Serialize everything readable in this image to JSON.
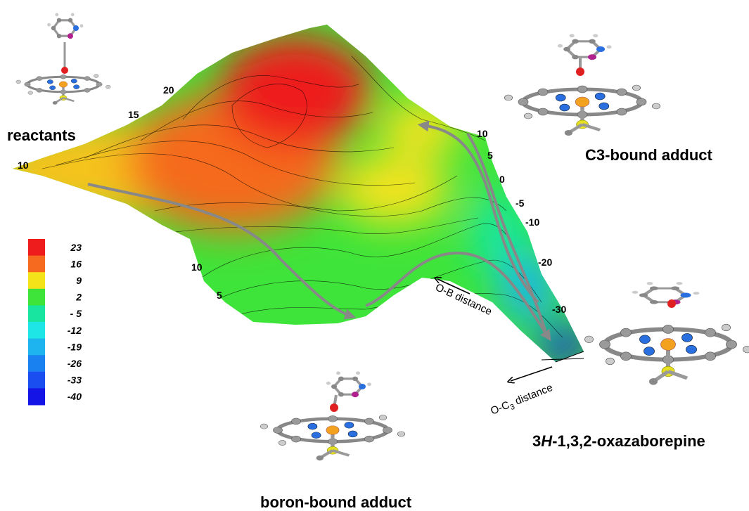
{
  "surface": {
    "left_ticks": [
      "20",
      "15",
      "10"
    ],
    "bottom_ticks": [
      "10",
      "5"
    ],
    "right_ticks": [
      "10",
      "5",
      "0",
      "-5",
      "-10",
      "-20",
      "-30"
    ],
    "ob_axis": "O-B distance",
    "oc_axis": {
      "main": "O-C",
      "sub": "3",
      "rest": " distance"
    }
  },
  "legend": [
    {
      "label": "23",
      "color": "#ee1c1c"
    },
    {
      "label": "16",
      "color": "#f56a1e"
    },
    {
      "label": "9",
      "color": "#f5e31a"
    },
    {
      "label": "2",
      "color": "#3ee43a"
    },
    {
      "label": "- 5",
      "color": "#18e6a0"
    },
    {
      "label": "-12",
      "color": "#1ee6e6"
    },
    {
      "label": "-19",
      "color": "#1eb4f0"
    },
    {
      "label": "-26",
      "color": "#1a82f0"
    },
    {
      "label": "-33",
      "color": "#1a4ef0"
    },
    {
      "label": "-40",
      "color": "#1414e6"
    }
  ],
  "labels": {
    "reactants": "reactants",
    "c3": "C3-bound adduct",
    "oxazaborepine": {
      "prefix": "3",
      "italic": "H",
      "rest": "-1,3,2-oxazaborepine"
    },
    "boron": "boron-bound adduct"
  }
}
